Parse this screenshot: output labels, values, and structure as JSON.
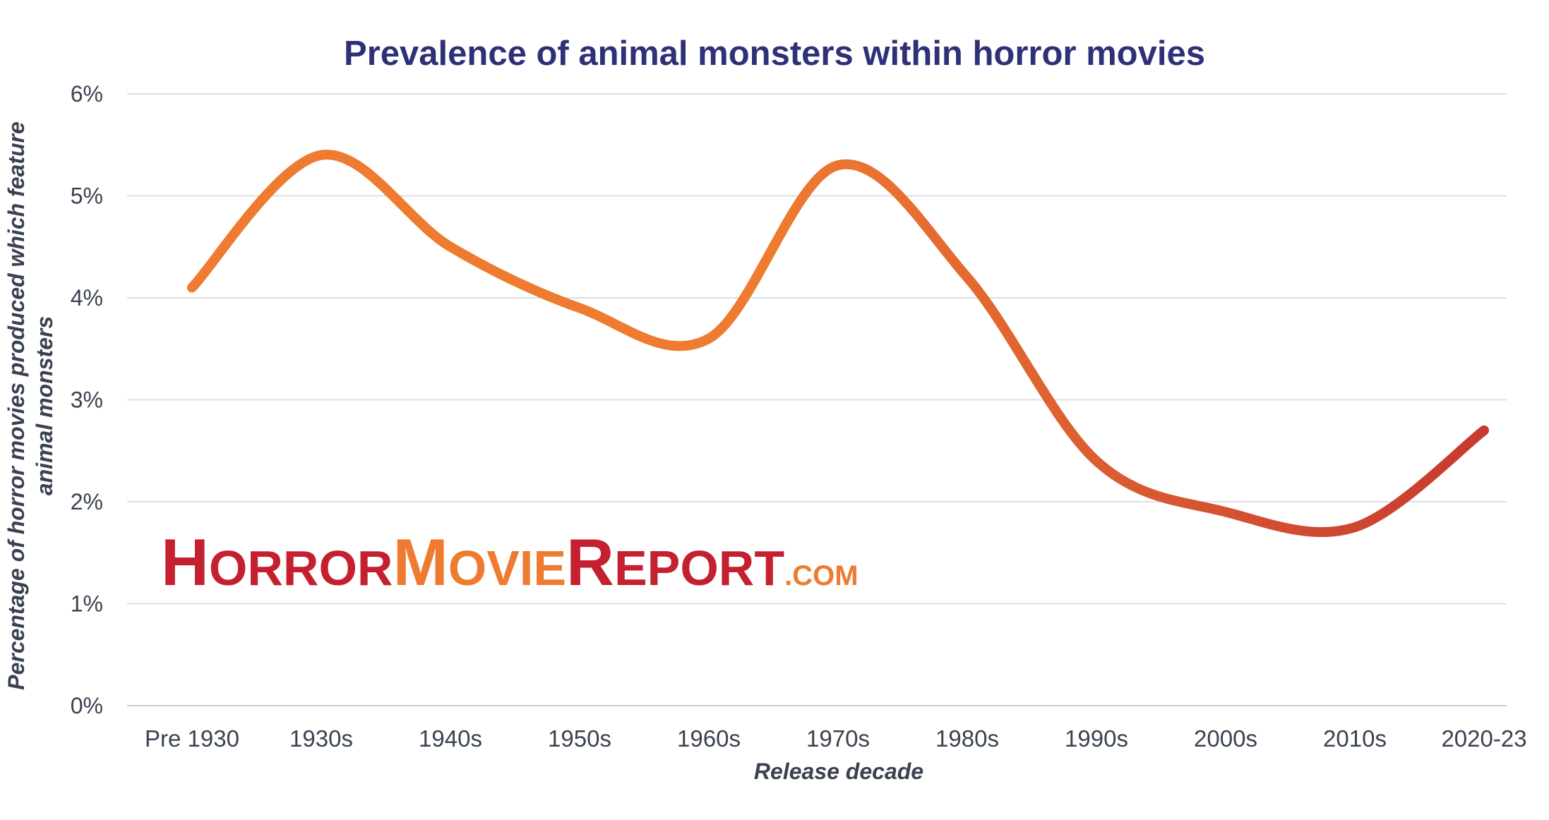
{
  "chart_data": {
    "type": "line",
    "title": "Prevalence of animal monsters within horror movies",
    "xlabel": "Release decade",
    "ylabel_lines": [
      "Percentage of horror movies produced which feature",
      "animal monsters"
    ],
    "categories": [
      "Pre 1930",
      "1930s",
      "1940s",
      "1950s",
      "1960s",
      "1970s",
      "1980s",
      "1990s",
      "2000s",
      "2010s",
      "2020-23"
    ],
    "values": [
      4.1,
      5.4,
      4.5,
      3.9,
      3.6,
      5.3,
      4.2,
      2.4,
      1.9,
      1.75,
      2.7
    ],
    "ylim": [
      0,
      6
    ],
    "yticks": [
      "0%",
      "1%",
      "2%",
      "3%",
      "4%",
      "5%",
      "6%"
    ],
    "grid": true,
    "line_colors": [
      "#ee7b30",
      "#c73a30"
    ]
  },
  "logo": {
    "h1": "H",
    "h2": "ORROR",
    "m1": "M",
    "m2": "OVIE",
    "r1": "R",
    "r2": "EPORT",
    "com": ".COM",
    "colors": {
      "red": "#c4202f",
      "orange": "#ee7b30"
    }
  }
}
